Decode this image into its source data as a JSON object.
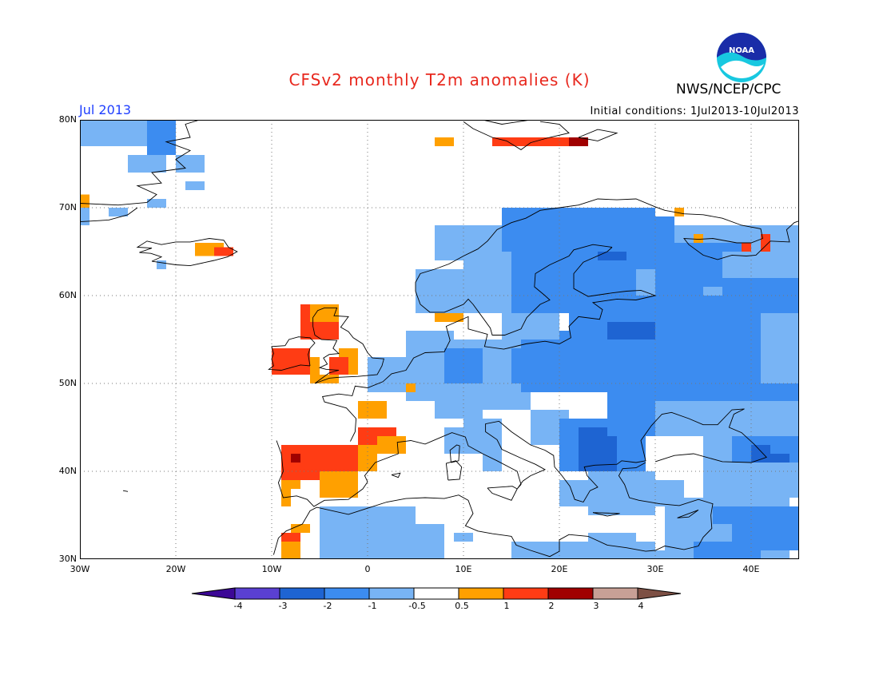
{
  "header": {
    "title": "CFSv2 monthly T2m anomalies (K)",
    "agency": "NWS/NCEP/CPC",
    "month": "Jul 2013",
    "initial_conditions": "Initial conditions: 1Jul2013-10Jul2013",
    "logo_text": "NOAA"
  },
  "axes": {
    "lat_labels": [
      "80N",
      "70N",
      "60N",
      "50N",
      "40N",
      "30N"
    ],
    "lon_labels": [
      "30W",
      "20W",
      "10W",
      "0",
      "10E",
      "20E",
      "30E",
      "40E"
    ],
    "lon_range": [
      -30,
      45
    ],
    "lat_range": [
      30,
      80
    ]
  },
  "legend": {
    "labels": [
      "-4",
      "-3",
      "-2",
      "-1",
      "-0.5",
      "0.5",
      "1",
      "2",
      "3",
      "4"
    ],
    "colors": [
      "#3c0896",
      "#5a40d2",
      "#1e64d2",
      "#3c8cf0",
      "#78b4f5",
      "#ffffff",
      "#ffa000",
      "#ff3c14",
      "#a00000",
      "#c8a096",
      "#7d5044"
    ]
  },
  "colors": {
    "title": "#e8281e",
    "month": "#1f3fff",
    "strong_blue": "#1e64d2",
    "blue": "#3c8cf0",
    "light_blue": "#78b4f5",
    "orange": "#ffa000",
    "red": "#ff3c14",
    "dark_red": "#a00000"
  }
}
